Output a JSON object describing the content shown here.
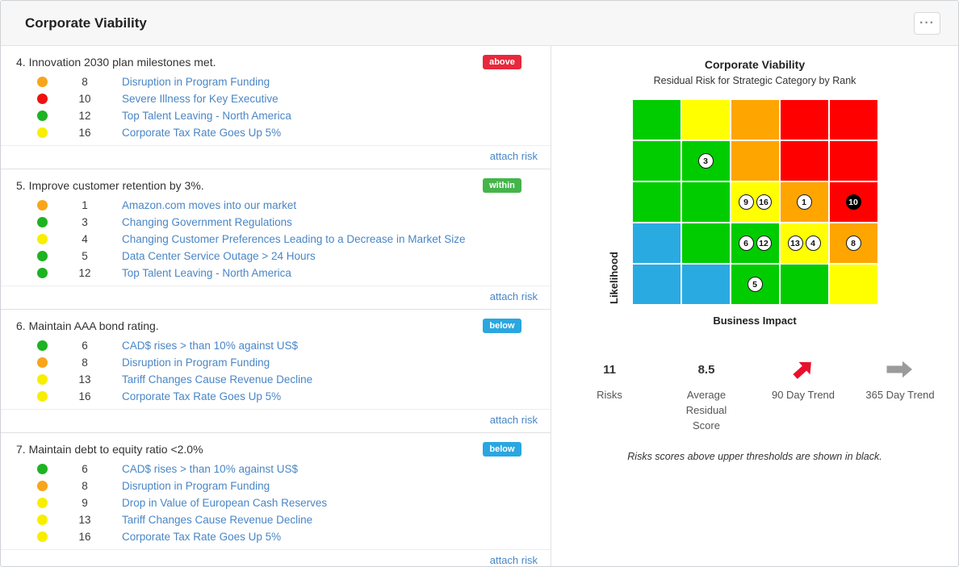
{
  "header": {
    "title": "Corporate Viability",
    "menu_glyph": "···"
  },
  "labels": {
    "attach_risk": "attach risk"
  },
  "colors": {
    "link": "#4a86c5",
    "status": {
      "above": "#e8283c",
      "within": "#44b54a",
      "below": "#2aa7e0"
    },
    "dot": {
      "orange": "#f7a51b",
      "red": "#ee1111",
      "green": "#1db321",
      "yellow": "#f7ee00"
    },
    "heatmap": {
      "green": "#00cc00",
      "yellow": "#ffff00",
      "orange": "#ffa500",
      "red": "#ff0000",
      "blue": "#29abe2"
    }
  },
  "objectives": [
    {
      "title": "4. Innovation 2030 plan milestones met.",
      "status": "above",
      "risks": [
        {
          "dot": "orange",
          "score": "8",
          "name": "Disruption in Program Funding"
        },
        {
          "dot": "red",
          "score": "10",
          "name": "Severe Illness for Key Executive"
        },
        {
          "dot": "green",
          "score": "12",
          "name": "Top Talent Leaving - North America"
        },
        {
          "dot": "yellow",
          "score": "16",
          "name": "Corporate Tax Rate Goes Up 5%"
        }
      ]
    },
    {
      "title": "5. Improve customer retention by 3%.",
      "status": "within",
      "risks": [
        {
          "dot": "orange",
          "score": "1",
          "name": "Amazon.com moves into our market"
        },
        {
          "dot": "green",
          "score": "3",
          "name": "Changing Government Regulations"
        },
        {
          "dot": "yellow",
          "score": "4",
          "name": "Changing Customer Preferences Leading to a Decrease in Market Size"
        },
        {
          "dot": "green",
          "score": "5",
          "name": "Data Center Service Outage > 24 Hours"
        },
        {
          "dot": "green",
          "score": "12",
          "name": "Top Talent Leaving - North America"
        }
      ]
    },
    {
      "title": "6. Maintain AAA bond rating.",
      "status": "below",
      "risks": [
        {
          "dot": "green",
          "score": "6",
          "name": "CAD$ rises > than 10% against US$"
        },
        {
          "dot": "orange",
          "score": "8",
          "name": "Disruption in Program Funding"
        },
        {
          "dot": "yellow",
          "score": "13",
          "name": "Tariff Changes Cause Revenue Decline"
        },
        {
          "dot": "yellow",
          "score": "16",
          "name": "Corporate Tax Rate Goes Up 5%"
        }
      ]
    },
    {
      "title": "7. Maintain debt to equity ratio <2.0%",
      "status": "below",
      "risks": [
        {
          "dot": "green",
          "score": "6",
          "name": "CAD$ rises > than 10% against US$"
        },
        {
          "dot": "orange",
          "score": "8",
          "name": "Disruption in Program Funding"
        },
        {
          "dot": "yellow",
          "score": "9",
          "name": "Drop in Value of European Cash Reserves"
        },
        {
          "dot": "yellow",
          "score": "13",
          "name": "Tariff Changes Cause Revenue Decline"
        },
        {
          "dot": "yellow",
          "score": "16",
          "name": "Corporate Tax Rate Goes Up 5%"
        }
      ]
    }
  ],
  "chart": {
    "title": "Corporate Viability",
    "subtitle": "Residual Risk for Strategic Category by Rank",
    "y_axis_label": "Likelihood",
    "x_axis_label": "Business Impact",
    "note": "Risks scores above upper thresholds are shown in black."
  },
  "chart_data": {
    "type": "heatmap",
    "title": "Corporate Viability",
    "subtitle": "Residual Risk for Strategic Category by Rank",
    "xlabel": "Business Impact",
    "ylabel": "Likelihood",
    "grid_size": [
      5,
      5
    ],
    "rows_top_to_bottom": [
      [
        {
          "color": "green"
        },
        {
          "color": "yellow"
        },
        {
          "color": "orange"
        },
        {
          "color": "red"
        },
        {
          "color": "red"
        }
      ],
      [
        {
          "color": "green"
        },
        {
          "color": "green",
          "markers": [
            {
              "label": "3"
            }
          ]
        },
        {
          "color": "orange"
        },
        {
          "color": "red"
        },
        {
          "color": "red"
        }
      ],
      [
        {
          "color": "green"
        },
        {
          "color": "green"
        },
        {
          "color": "yellow",
          "markers": [
            {
              "label": "9"
            },
            {
              "label": "16"
            }
          ]
        },
        {
          "color": "orange",
          "markers": [
            {
              "label": "1"
            }
          ]
        },
        {
          "color": "red",
          "markers": [
            {
              "label": "10",
              "black": true
            }
          ]
        }
      ],
      [
        {
          "color": "blue"
        },
        {
          "color": "green"
        },
        {
          "color": "green",
          "markers": [
            {
              "label": "6"
            },
            {
              "label": "12"
            }
          ]
        },
        {
          "color": "yellow",
          "markers": [
            {
              "label": "13"
            },
            {
              "label": "4"
            }
          ]
        },
        {
          "color": "orange",
          "markers": [
            {
              "label": "8"
            }
          ]
        }
      ],
      [
        {
          "color": "blue"
        },
        {
          "color": "blue"
        },
        {
          "color": "green",
          "markers": [
            {
              "label": "5"
            }
          ]
        },
        {
          "color": "green"
        },
        {
          "color": "yellow"
        }
      ]
    ]
  },
  "stats": [
    {
      "value": "11",
      "label": "Risks"
    },
    {
      "value": "8.5",
      "label": "Average Residual Score"
    },
    {
      "icon": "trend-up-right-arrow",
      "icon_color": "#e8112d",
      "label": "90 Day Trend"
    },
    {
      "icon": "trend-right-arrow",
      "icon_color": "#9b9b9b",
      "label": "365 Day Trend"
    }
  ]
}
